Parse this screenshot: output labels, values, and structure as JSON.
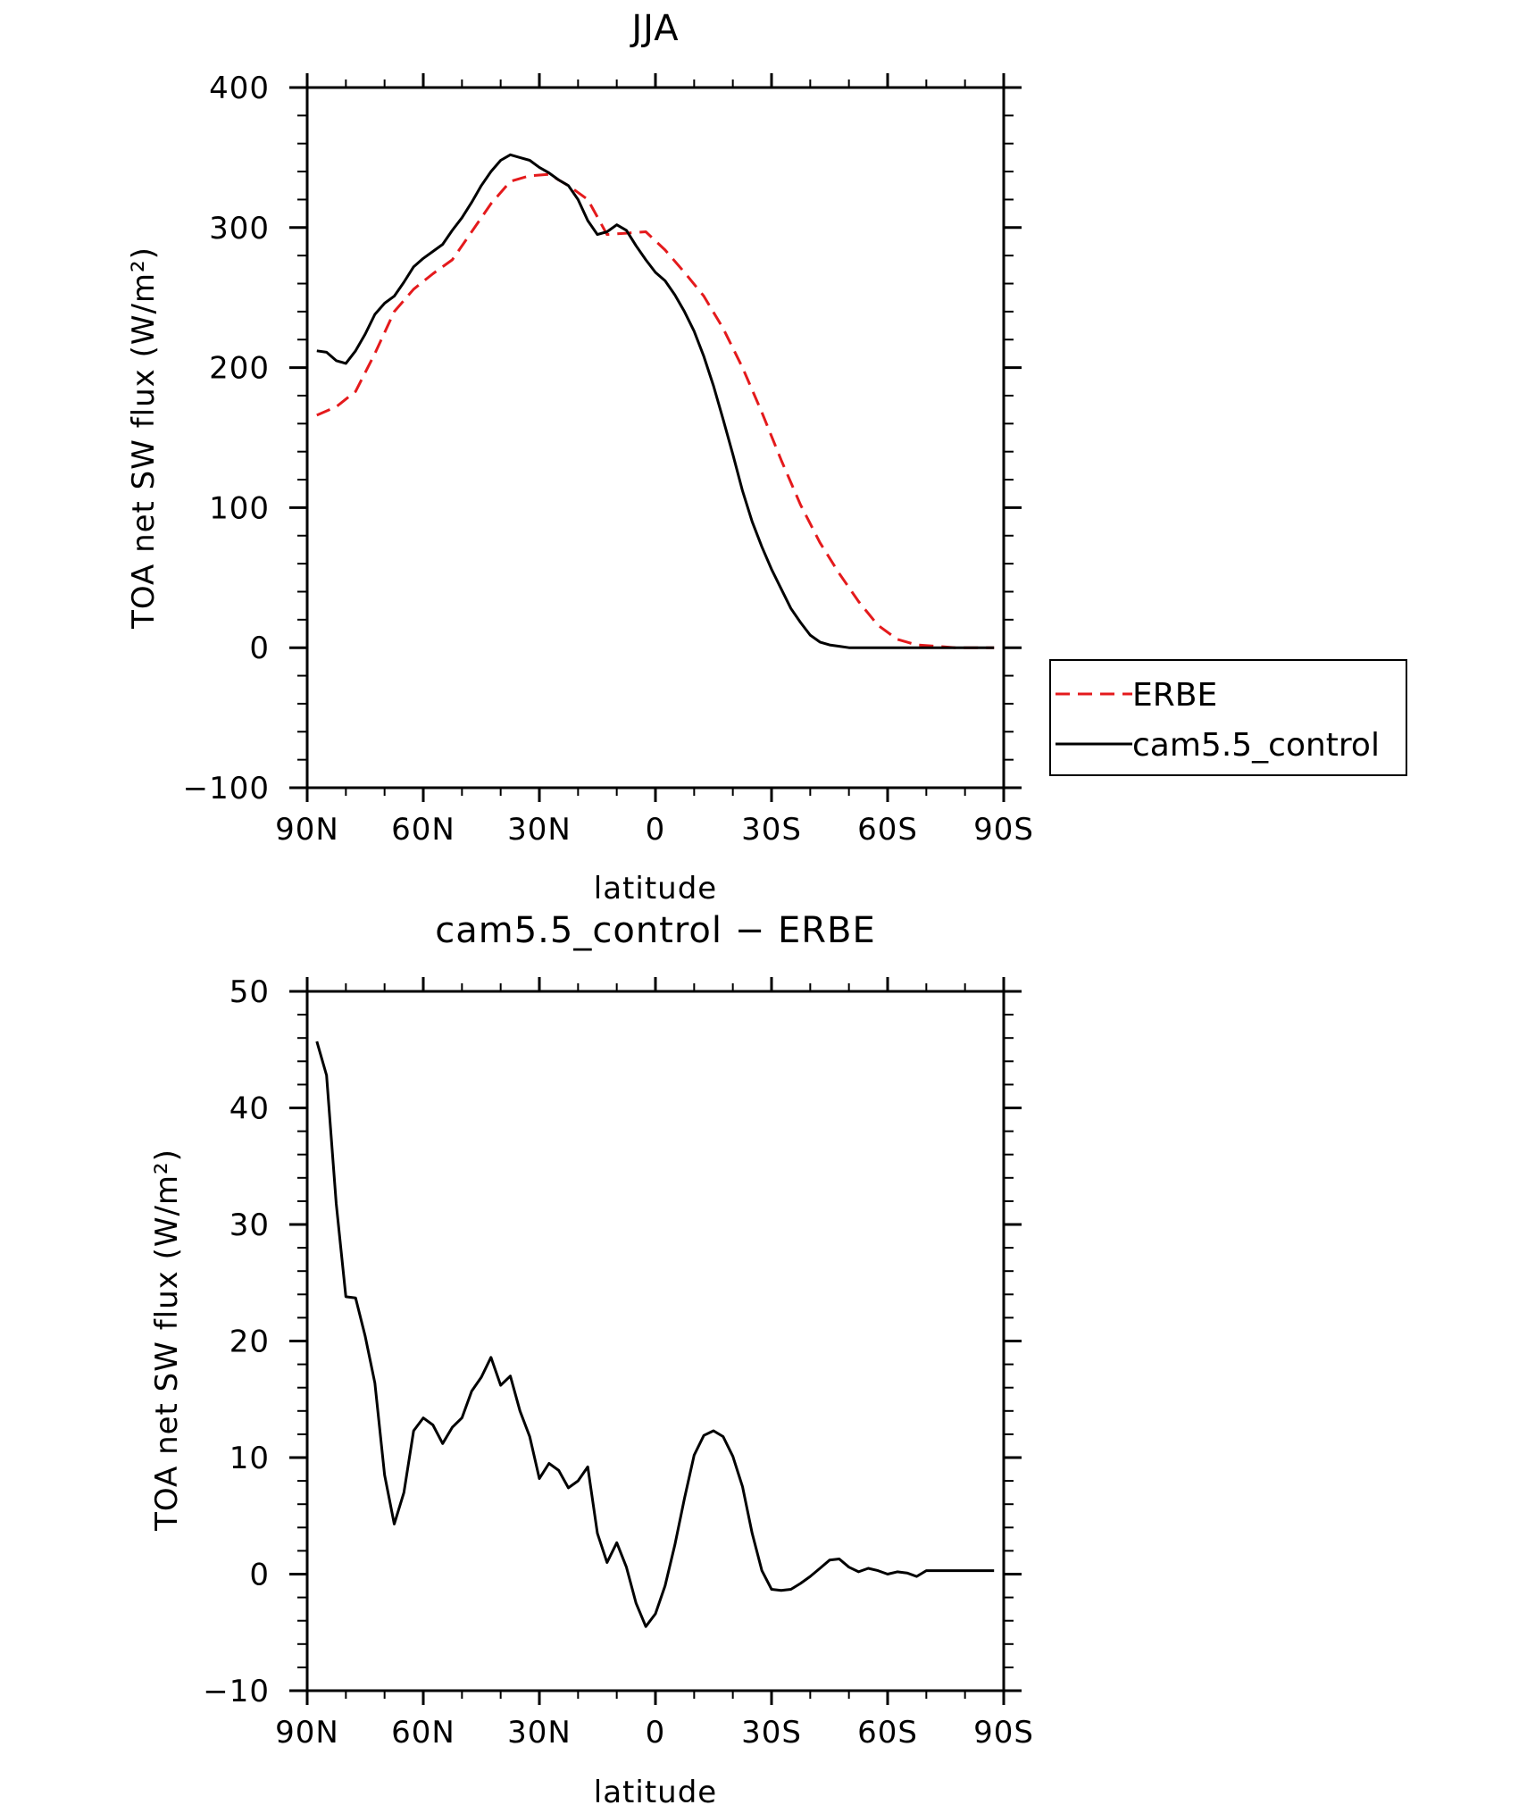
{
  "chart_data": [
    {
      "type": "line",
      "title": "JJA",
      "xlabel": "latitude",
      "ylabel": "TOA net SW flux (W/m²)",
      "ylim": [
        -100,
        400
      ],
      "xlim": [
        90,
        -90
      ],
      "xticks": [
        90,
        60,
        30,
        0,
        -30,
        -60,
        -90
      ],
      "xtick_labels": [
        "90N",
        "60N",
        "30N",
        "0",
        "30S",
        "60S",
        "90S"
      ],
      "yticks": [
        -100,
        0,
        100,
        200,
        300,
        400
      ],
      "ytick_labels": [
        "−100",
        "0",
        "100",
        "200",
        "300",
        "400"
      ],
      "legend_position": "right, outside the plot",
      "series": [
        {
          "name": "ERBE",
          "color": "#e41a1c",
          "style": "dashed",
          "x": [
            87.5,
            82.5,
            77.5,
            72.5,
            67.5,
            62.5,
            57.5,
            52.5,
            47.5,
            42.5,
            37.5,
            32.5,
            27.5,
            22.5,
            17.5,
            12.5,
            7.5,
            2.5,
            -2.5,
            -7.5,
            -12.5,
            -17.5,
            -22.5,
            -27.5,
            -32.5,
            -37.5,
            -42.5,
            -47.5,
            -52.5,
            -57.5,
            -62.5,
            -67.5,
            -72.5,
            -77.5,
            -82.5,
            -87.5
          ],
          "values": [
            166,
            172,
            183,
            210,
            240,
            256,
            267,
            277,
            297,
            317,
            333,
            337,
            338,
            330,
            320,
            295,
            296,
            297,
            284,
            268,
            251,
            228,
            200,
            168,
            134,
            102,
            75,
            53,
            33,
            16,
            6,
            2,
            1,
            0,
            0,
            0
          ]
        },
        {
          "name": "cam5.5_control",
          "color": "#000000",
          "style": "solid",
          "x": [
            87.5,
            85,
            82.5,
            80,
            77.5,
            75,
            72.5,
            70,
            67.5,
            65,
            62.5,
            60,
            57.5,
            55,
            52.5,
            50,
            47.5,
            45,
            42.5,
            40,
            37.5,
            35,
            32.5,
            30,
            27.5,
            25,
            22.5,
            20,
            17.5,
            15,
            12.5,
            10,
            7.5,
            5,
            2.5,
            0,
            -2.5,
            -5,
            -7.5,
            -10,
            -12.5,
            -15,
            -17.5,
            -20,
            -22.5,
            -25,
            -27.5,
            -30,
            -32.5,
            -35,
            -37.5,
            -40,
            -42.5,
            -45,
            -47.5,
            -50,
            -52.5,
            -55,
            -57.5,
            -60,
            -62.5,
            -65,
            -67.5,
            -70,
            -72.5,
            -75,
            -77.5,
            -80,
            -82.5,
            -85,
            -87.5
          ],
          "values": [
            212,
            211,
            205,
            203,
            212,
            224,
            238,
            246,
            251,
            261,
            272,
            278,
            283,
            288,
            298,
            307,
            318,
            330,
            340,
            348,
            352,
            350,
            348,
            343,
            339,
            334,
            330,
            320,
            305,
            295,
            297,
            302,
            298,
            287,
            277,
            268,
            262,
            252,
            240,
            226,
            208,
            187,
            163,
            138,
            112,
            90,
            72,
            56,
            42,
            28,
            18,
            9,
            4,
            2,
            1,
            0,
            0,
            0,
            0,
            0,
            0,
            0,
            0,
            0,
            0,
            0,
            0,
            0,
            0,
            0,
            0
          ]
        }
      ]
    },
    {
      "type": "line",
      "title": "cam5.5_control − ERBE",
      "xlabel": "latitude",
      "ylabel": "TOA net SW flux (W/m²)",
      "ylim": [
        -10,
        50
      ],
      "xlim": [
        90,
        -90
      ],
      "xticks": [
        90,
        60,
        30,
        0,
        -30,
        -60,
        -90
      ],
      "xtick_labels": [
        "90N",
        "60N",
        "30N",
        "0",
        "30S",
        "60S",
        "90S"
      ],
      "yticks": [
        -10,
        0,
        10,
        20,
        30,
        40,
        50
      ],
      "ytick_labels": [
        "−10",
        "0",
        "10",
        "20",
        "30",
        "40",
        "50"
      ],
      "series": [
        {
          "color": "#000000",
          "style": "solid",
          "x": [
            87.5,
            85,
            82.5,
            80,
            77.5,
            75,
            72.5,
            70,
            67.5,
            65,
            62.5,
            60,
            57.5,
            55,
            52.5,
            50,
            47.5,
            45,
            42.5,
            40,
            37.5,
            35,
            32.5,
            30,
            27.5,
            25,
            22.5,
            20,
            17.5,
            15,
            12.5,
            10,
            7.5,
            5,
            2.5,
            0,
            -2.5,
            -5,
            -7.5,
            -10,
            -12.5,
            -15,
            -17.5,
            -20,
            -22.5,
            -25,
            -27.5,
            -30,
            -32.5,
            -35,
            -37.5,
            -40,
            -42.5,
            -45,
            -47.5,
            -50,
            -52.5,
            -55,
            -57.5,
            -60,
            -62.5,
            -65,
            -67.5,
            -70,
            -72.5,
            -75,
            -77.5,
            -80,
            -82.5,
            -85,
            -87.5
          ],
          "values": [
            45.7,
            42.8,
            31.8,
            23.8,
            23.7,
            20.4,
            16.4,
            8.5,
            4.3,
            7.0,
            12.3,
            13.4,
            12.8,
            11.2,
            12.6,
            13.4,
            15.7,
            16.9,
            18.6,
            16.2,
            17.0,
            14.0,
            11.8,
            8.2,
            9.5,
            8.9,
            7.4,
            8.0,
            9.2,
            3.5,
            1.0,
            2.7,
            0.6,
            -2.5,
            -4.5,
            -3.4,
            -1.0,
            2.5,
            6.5,
            10.2,
            11.9,
            12.3,
            11.8,
            10.1,
            7.5,
            3.5,
            0.3,
            -1.3,
            -1.4,
            -1.3,
            -0.8,
            -0.2,
            0.5,
            1.2,
            1.3,
            0.6,
            0.2,
            0.5,
            0.3,
            0.0,
            0.2,
            0.1,
            -0.2,
            0.3,
            0.3,
            0.3,
            0.3,
            0.3,
            0.3,
            0.3,
            0.3
          ]
        }
      ]
    }
  ]
}
